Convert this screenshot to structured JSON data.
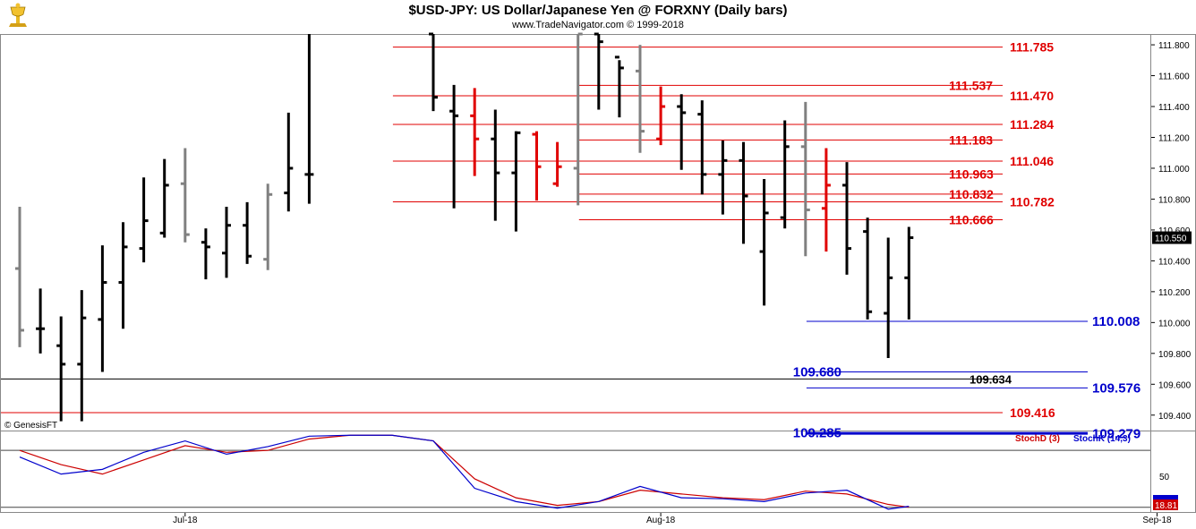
{
  "header": {
    "title": "$USD-JPY:  US Dollar/Japanese Yen @ FORXNY  (Daily bars)",
    "subtitle": "www.TradeNavigator.com © 1999-2018",
    "logo_icon": "gold-trophy-icon"
  },
  "copyright": "© GenesisFT",
  "colors": {
    "up": "#000000",
    "down_red": "#e00000",
    "neutral_gray": "#808080",
    "resistance_line": "#e00000",
    "support_line": "#0000cc",
    "neutral_line": "#000000",
    "stochD": "#cc0000",
    "stochK": "#0000cc"
  },
  "chart_data": [
    {
      "type": "ohlc",
      "yaxis_ticks": [
        "111.800",
        "111.600",
        "111.400",
        "111.200",
        "111.000",
        "110.800",
        "110.600",
        "110.400",
        "110.200",
        "110.000",
        "109.800",
        "109.600",
        "109.400"
      ],
      "ylim": [
        109.3,
        111.87
      ],
      "last_price": "110.550",
      "xaxis_labels": [
        {
          "label": "Jul-18",
          "index": 8
        },
        {
          "label": "Aug-18",
          "index": 31
        },
        {
          "label": "Sep-18",
          "index": 55
        }
      ],
      "bars": [
        {
          "i": 0,
          "o": 110.35,
          "h": 110.75,
          "l": 109.84,
          "c": 109.95,
          "col": "gray"
        },
        {
          "i": 1,
          "o": 109.96,
          "h": 110.22,
          "l": 109.8,
          "c": 109.96,
          "col": "black"
        },
        {
          "i": 2,
          "o": 109.85,
          "h": 110.04,
          "l": 109.36,
          "c": 109.73,
          "col": "black"
        },
        {
          "i": 3,
          "o": 109.73,
          "h": 110.21,
          "l": 109.36,
          "c": 110.03,
          "col": "black"
        },
        {
          "i": 4,
          "o": 110.02,
          "h": 110.5,
          "l": 109.68,
          "c": 110.26,
          "col": "black"
        },
        {
          "i": 5,
          "o": 110.26,
          "h": 110.65,
          "l": 109.96,
          "c": 110.49,
          "col": "black"
        },
        {
          "i": 6,
          "o": 110.48,
          "h": 110.94,
          "l": 110.39,
          "c": 110.66,
          "col": "black"
        },
        {
          "i": 7,
          "o": 110.58,
          "h": 111.06,
          "l": 110.55,
          "c": 110.89,
          "col": "black"
        },
        {
          "i": 8,
          "o": 110.9,
          "h": 111.13,
          "l": 110.52,
          "c": 110.57,
          "col": "gray"
        },
        {
          "i": 9,
          "o": 110.52,
          "h": 110.61,
          "l": 110.28,
          "c": 110.49,
          "col": "black"
        },
        {
          "i": 10,
          "o": 110.45,
          "h": 110.75,
          "l": 110.29,
          "c": 110.63,
          "col": "black"
        },
        {
          "i": 11,
          "o": 110.63,
          "h": 110.78,
          "l": 110.38,
          "c": 110.43,
          "col": "black"
        },
        {
          "i": 12,
          "o": 110.41,
          "h": 110.9,
          "l": 110.34,
          "c": 110.83,
          "col": "gray"
        },
        {
          "i": 13,
          "o": 110.84,
          "h": 111.36,
          "l": 110.72,
          "c": 111.0,
          "col": "black"
        },
        {
          "i": 14,
          "o": 110.96,
          "h": 111.87,
          "l": 110.77,
          "c": 110.96,
          "col": "black"
        },
        {
          "i": 20,
          "o": 111.87,
          "h": 111.87,
          "l": 111.37,
          "c": 111.46,
          "col": "black"
        },
        {
          "i": 21,
          "o": 111.37,
          "h": 111.54,
          "l": 110.74,
          "c": 111.34,
          "col": "black"
        },
        {
          "i": 22,
          "o": 111.34,
          "h": 111.52,
          "l": 110.95,
          "c": 111.19,
          "col": "red"
        },
        {
          "i": 23,
          "o": 111.19,
          "h": 111.38,
          "l": 110.66,
          "c": 110.97,
          "col": "black"
        },
        {
          "i": 24,
          "o": 110.97,
          "h": 111.24,
          "l": 110.59,
          "c": 111.23,
          "col": "black"
        },
        {
          "i": 25,
          "o": 111.22,
          "h": 111.24,
          "l": 110.79,
          "c": 111.01,
          "col": "red"
        },
        {
          "i": 26,
          "o": 110.9,
          "h": 111.17,
          "l": 110.88,
          "c": 111.01,
          "col": "red"
        },
        {
          "i": 27,
          "o": 111.0,
          "h": 111.87,
          "l": 110.76,
          "c": 111.87,
          "col": "gray"
        },
        {
          "i": 28,
          "o": 111.87,
          "h": 111.87,
          "l": 111.38,
          "c": 111.82,
          "col": "black"
        },
        {
          "i": 29,
          "o": 111.72,
          "h": 111.7,
          "l": 111.33,
          "c": 111.65,
          "col": "black"
        },
        {
          "i": 30,
          "o": 111.63,
          "h": 111.8,
          "l": 111.1,
          "c": 111.24,
          "col": "gray"
        },
        {
          "i": 31,
          "o": 111.19,
          "h": 111.53,
          "l": 111.15,
          "c": 111.4,
          "col": "red"
        },
        {
          "i": 32,
          "o": 111.4,
          "h": 111.48,
          "l": 110.99,
          "c": 111.36,
          "col": "black"
        },
        {
          "i": 33,
          "o": 111.35,
          "h": 111.44,
          "l": 110.83,
          "c": 110.96,
          "col": "black"
        },
        {
          "i": 34,
          "o": 110.96,
          "h": 111.18,
          "l": 110.7,
          "c": 111.05,
          "col": "black"
        },
        {
          "i": 35,
          "o": 111.05,
          "h": 111.17,
          "l": 110.51,
          "c": 110.82,
          "col": "black"
        },
        {
          "i": 36,
          "o": 110.46,
          "h": 110.93,
          "l": 110.11,
          "c": 110.71,
          "col": "black"
        },
        {
          "i": 37,
          "o": 110.68,
          "h": 111.31,
          "l": 110.61,
          "c": 111.14,
          "col": "black"
        },
        {
          "i": 38,
          "o": 111.14,
          "h": 111.43,
          "l": 110.43,
          "c": 110.73,
          "col": "gray"
        },
        {
          "i": 39,
          "o": 110.74,
          "h": 111.13,
          "l": 110.46,
          "c": 110.89,
          "col": "red"
        },
        {
          "i": 40,
          "o": 110.89,
          "h": 111.04,
          "l": 110.31,
          "c": 110.48,
          "col": "black"
        },
        {
          "i": 41,
          "o": 110.59,
          "h": 110.68,
          "l": 110.02,
          "c": 110.07,
          "col": "black"
        },
        {
          "i": 42,
          "o": 110.06,
          "h": 110.55,
          "l": 109.77,
          "c": 110.29,
          "col": "black"
        },
        {
          "i": 43,
          "o": 110.29,
          "h": 110.62,
          "l": 110.02,
          "c": 110.55,
          "col": "black"
        }
      ],
      "levels": [
        {
          "value": 111.785,
          "label": "111.785",
          "color": "red",
          "x0": 19,
          "labelSide": "right"
        },
        {
          "value": 111.537,
          "label": "111.537",
          "color": "red",
          "x0": 28,
          "labelSide": "mid"
        },
        {
          "value": 111.47,
          "label": "111.470",
          "color": "red",
          "x0": 19,
          "labelSide": "right"
        },
        {
          "value": 111.284,
          "label": "111.284",
          "color": "red",
          "x0": 19,
          "labelSide": "right"
        },
        {
          "value": 111.183,
          "label": "111.183",
          "color": "red",
          "x0": 28,
          "labelSide": "mid"
        },
        {
          "value": 111.046,
          "label": "111.046",
          "color": "red",
          "x0": 19,
          "labelSide": "right"
        },
        {
          "value": 110.963,
          "label": "110.963",
          "color": "red",
          "x0": 28,
          "labelSide": "mid"
        },
        {
          "value": 110.832,
          "label": "110.832",
          "color": "red",
          "x0": 28,
          "labelSide": "mid"
        },
        {
          "value": 110.782,
          "label": "110.782",
          "color": "red",
          "x0": 19,
          "labelSide": "right"
        },
        {
          "value": 110.666,
          "label": "110.666",
          "color": "red",
          "x0": 28,
          "labelSide": "mid"
        },
        {
          "value": 110.008,
          "label": "110.008",
          "color": "blue",
          "x0": 39,
          "labelSide": "right"
        },
        {
          "value": 109.68,
          "label": "109.680",
          "color": "blue",
          "x0": 39,
          "labelSide": "left"
        },
        {
          "value": 109.634,
          "label": "109.634",
          "color": "black",
          "x0": -1,
          "labelSide": "mid"
        },
        {
          "value": 109.576,
          "label": "109.576",
          "color": "blue",
          "x0": 39,
          "labelSide": "right"
        },
        {
          "value": 109.416,
          "label": "109.416",
          "color": "red",
          "x0": -1,
          "labelSide": "right"
        },
        {
          "value": 109.285,
          "label": "109.285",
          "color": "blue",
          "x0": 39,
          "labelSide": "left"
        },
        {
          "value": 109.279,
          "label": "109.279",
          "color": "blue",
          "x0": 39,
          "labelSide": "right"
        }
      ]
    },
    {
      "type": "line",
      "legend": [
        "StochD (3)",
        "StochK (14,3)"
      ],
      "ytick": "50",
      "last_value": "18.81",
      "ylim": [
        15,
        100
      ],
      "series": [
        {
          "name": "StochD (3)",
          "color": "#cc0000",
          "x": [
            0,
            2,
            4,
            6,
            8,
            10,
            12,
            14,
            16,
            18,
            20,
            22,
            24,
            26,
            28,
            30,
            32,
            34,
            36,
            38,
            40,
            42,
            43
          ],
          "values": [
            80,
            65,
            55,
            70,
            85,
            78,
            80,
            92,
            96,
            96,
            90,
            50,
            30,
            22,
            26,
            38,
            34,
            30,
            28,
            37,
            34,
            23,
            20
          ]
        },
        {
          "name": "StochK (14,3)",
          "color": "#0000cc",
          "x": [
            0,
            2,
            4,
            6,
            8,
            10,
            12,
            14,
            16,
            18,
            20,
            22,
            24,
            26,
            28,
            30,
            32,
            34,
            36,
            38,
            40,
            42,
            43
          ],
          "values": [
            73,
            55,
            60,
            78,
            90,
            76,
            84,
            95,
            96,
            96,
            90,
            40,
            26,
            19,
            26,
            42,
            30,
            29,
            26,
            35,
            38,
            18,
            21
          ]
        }
      ]
    }
  ]
}
